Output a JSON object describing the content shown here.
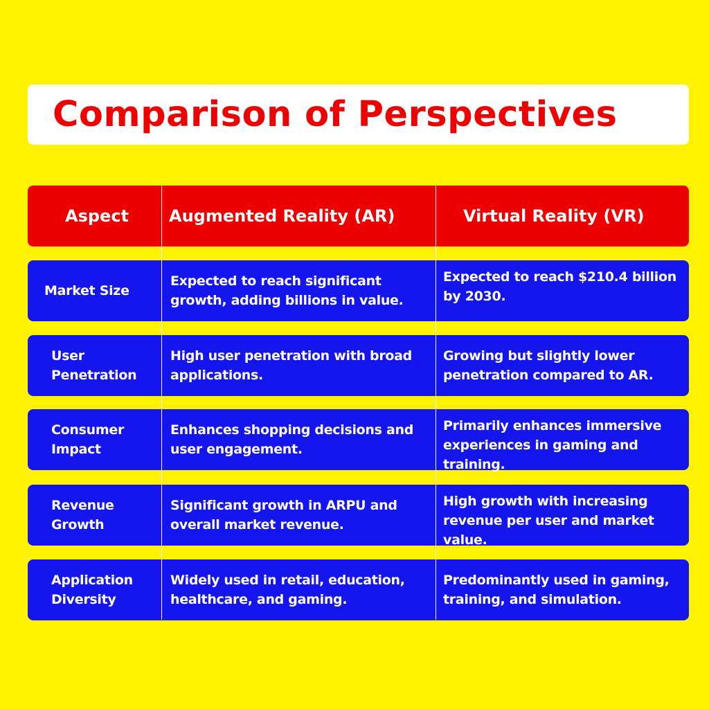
{
  "title": "Comparison of Perspectives",
  "colors": {
    "background": "#FFF200",
    "title_text": "#EE0000",
    "header_row": "#EE0000",
    "body_row": "#1515EE",
    "cell_text": "#FFFFFF"
  },
  "table": {
    "headers": [
      "Aspect",
      "Augmented Reality (AR)",
      "Virtual Reality (VR)"
    ],
    "rows": [
      {
        "aspect": "Market Size",
        "ar": "Expected to reach significant growth, adding billions in value.",
        "vr": "Expected to reach $210.4 billion by 2030."
      },
      {
        "aspect": "User Penetration",
        "ar": "High user penetration with broad applications.",
        "vr": "Growing but slightly lower penetration compared to AR."
      },
      {
        "aspect": "Consumer Impact",
        "ar": "Enhances shopping decisions and user engagement.",
        "vr": "Primarily enhances immersive experiences in gaming and training."
      },
      {
        "aspect": "Revenue Growth",
        "ar": "Significant growth in ARPU and overall market revenue.",
        "vr": "High growth with increasing revenue per user and market value."
      },
      {
        "aspect": "Application Diversity",
        "ar": "Widely used in retail, education, healthcare, and gaming.",
        "vr": "Predominantly used in gaming, training, and simulation."
      }
    ]
  }
}
